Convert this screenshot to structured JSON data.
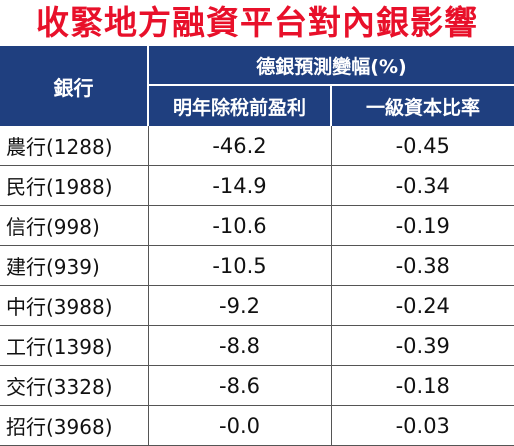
{
  "title": "收緊地方融資平台對內銀影響",
  "header": {
    "bank": "銀行",
    "group": "德銀預測變幅(%)",
    "col_profit": "明年除稅前盈利",
    "col_tier1": "一級資本比率"
  },
  "rows": [
    {
      "bank": "農行(1288)",
      "profit": "-46.2",
      "tier1": "-0.45"
    },
    {
      "bank": "民行(1988)",
      "profit": "-14.9",
      "tier1": "-0.34"
    },
    {
      "bank": "信行(998)",
      "profit": "-10.6",
      "tier1": "-0.19"
    },
    {
      "bank": "建行(939)",
      "profit": "-10.5",
      "tier1": "-0.38"
    },
    {
      "bank": "中行(3988)",
      "profit": "-9.2",
      "tier1": "-0.24"
    },
    {
      "bank": "工行(1398)",
      "profit": "-8.8",
      "tier1": "-0.39"
    },
    {
      "bank": "交行(3328)",
      "profit": "-8.6",
      "tier1": "-0.18"
    },
    {
      "bank": "招行(3968)",
      "profit": "-0.0",
      "tier1": "-0.03"
    }
  ],
  "colors": {
    "title": "#e8102a",
    "header_bg": "#1f3f7f"
  }
}
